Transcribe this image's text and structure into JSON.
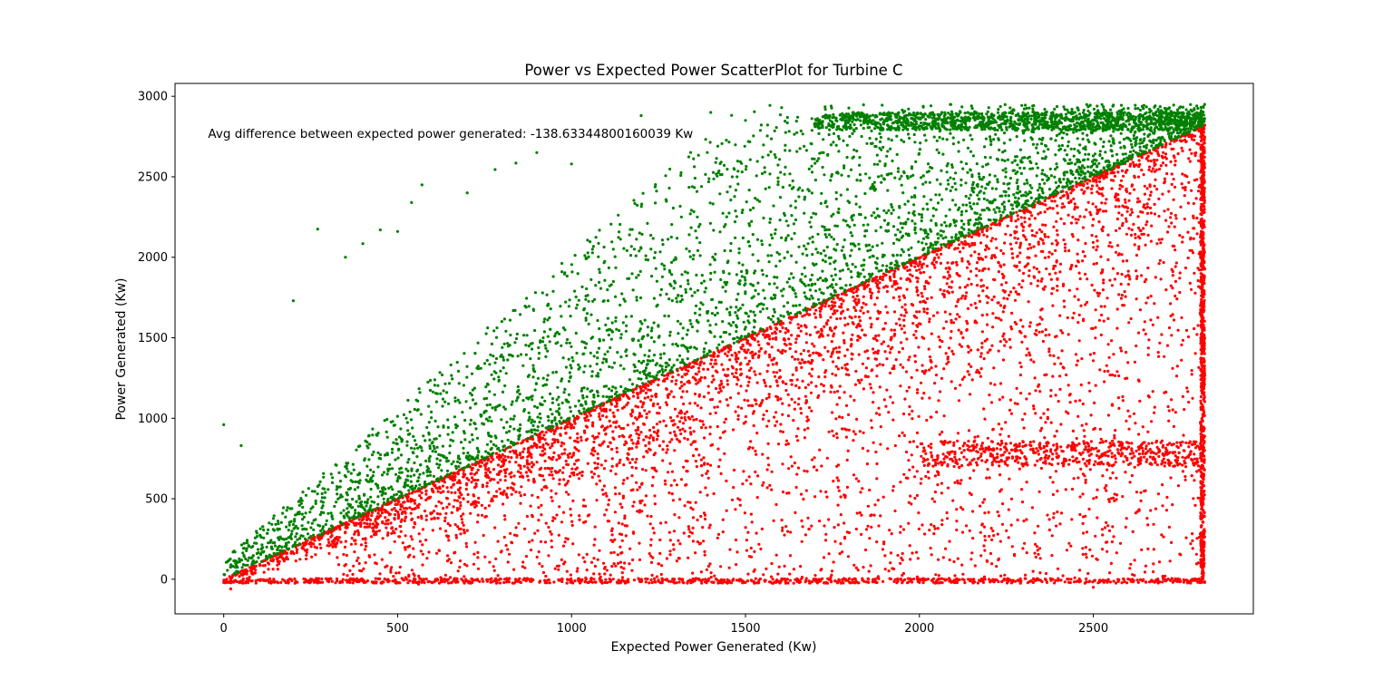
{
  "chart_data": {
    "type": "scatter",
    "title": "Power vs Expected Power ScatterPlot for Turbine C",
    "xlabel": "Expected Power Generated (Kw)",
    "ylabel": "Power Generated (Kw)",
    "xlim": [
      -140,
      2960
    ],
    "ylim": [
      -215,
      3080
    ],
    "xticks": [
      0,
      500,
      1000,
      1500,
      2000,
      2500
    ],
    "yticks": [
      0,
      500,
      1000,
      1500,
      2000,
      2500,
      3000
    ],
    "grid": false,
    "annotation": {
      "text": "Avg difference between expected power generated: -138.63344800160039 Kw",
      "x": -45,
      "y": 2770
    },
    "colors": {
      "above": "#008000",
      "below": "#ff0000"
    },
    "series": [
      {
        "color": "#008000",
        "description_points": [
          [
            0,
            960
          ],
          [
            50,
            830
          ],
          [
            200,
            1730
          ],
          [
            270,
            2175
          ],
          [
            350,
            2000
          ],
          [
            400,
            2085
          ],
          [
            450,
            2170
          ],
          [
            500,
            2160
          ],
          [
            540,
            2340
          ],
          [
            570,
            2450
          ],
          [
            700,
            2400
          ],
          [
            780,
            2545
          ],
          [
            840,
            2585
          ],
          [
            900,
            2650
          ],
          [
            1000,
            2580
          ],
          [
            1200,
            2880
          ],
          [
            1400,
            2900
          ],
          [
            1500,
            2850
          ],
          [
            1650,
            2870
          ],
          [
            2000,
            2860
          ],
          [
            2150,
            2940
          ],
          [
            2500,
            2850
          ],
          [
            2820,
            2950
          ]
        ],
        "envelope_lower": [
          [
            0,
            0
          ],
          [
            2820,
            2820
          ]
        ],
        "envelope_upper": [
          [
            0,
            300
          ],
          [
            500,
            1300
          ],
          [
            1000,
            2200
          ],
          [
            1500,
            2650
          ],
          [
            2000,
            2850
          ],
          [
            2820,
            2950
          ]
        ]
      },
      {
        "color": "#ff0000",
        "description_points": [
          [
            0,
            -20
          ],
          [
            20,
            -60
          ],
          [
            560,
            -30
          ],
          [
            1000,
            -10
          ],
          [
            1500,
            -20
          ],
          [
            2000,
            -20
          ],
          [
            2500,
            -50
          ],
          [
            2820,
            -20
          ],
          [
            2820,
            800
          ],
          [
            2820,
            2820
          ],
          [
            2700,
            780
          ],
          [
            2100,
            700
          ]
        ],
        "envelope_upper": [
          [
            0,
            0
          ],
          [
            2820,
            2820
          ]
        ],
        "baseline_y": -10
      }
    ]
  }
}
